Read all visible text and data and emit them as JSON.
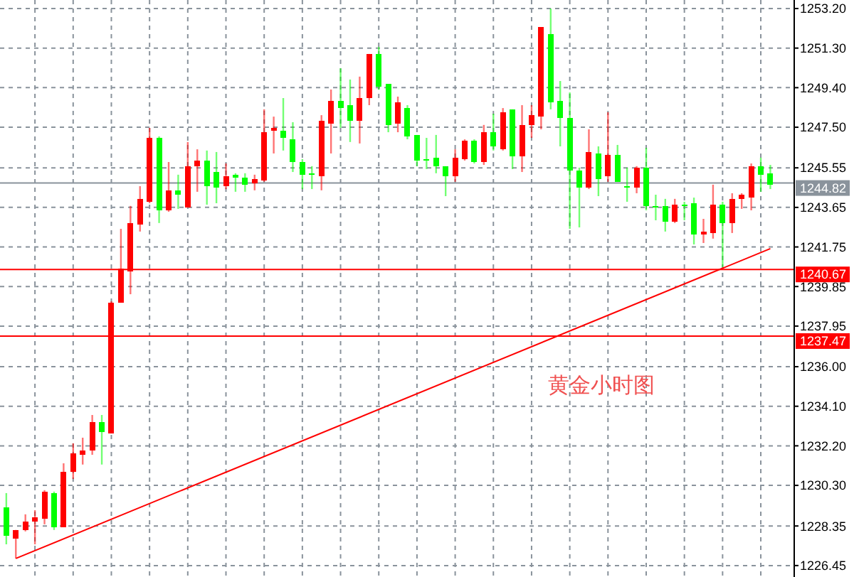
{
  "chart_data": {
    "type": "candlestick",
    "categories": [
      null,
      null,
      null,
      null,
      null,
      null,
      null,
      null,
      null,
      null,
      null,
      null,
      null,
      null,
      null,
      null,
      null,
      null,
      null,
      null,
      null,
      null,
      null,
      null,
      null,
      null,
      null,
      null,
      null,
      null,
      null,
      null,
      null,
      null,
      null,
      null,
      null,
      null,
      null,
      null,
      null,
      null,
      null,
      null,
      null,
      null,
      null,
      null,
      null,
      null,
      null,
      null,
      null,
      null,
      null,
      null,
      null,
      null,
      null,
      null,
      null,
      null,
      null,
      null,
      null,
      null,
      null,
      null,
      null,
      null,
      null,
      null,
      null,
      null,
      null,
      null,
      null,
      null,
      null,
      null,
      null
    ],
    "ohlc": [
      [
        1229.25,
        1229.93,
        1227.47,
        1227.88
      ],
      [
        1227.75,
        1228.16,
        1226.79,
        1228.16
      ],
      [
        1228.16,
        1228.91,
        1228.09,
        1228.57
      ],
      [
        1228.57,
        1229.11,
        1227.47,
        1228.77
      ],
      [
        1228.7,
        1230.07,
        1228.43,
        1230.0
      ],
      [
        1229.93,
        1230.0,
        1228.16,
        1228.29
      ],
      [
        1228.29,
        1231.36,
        1228.29,
        1230.95
      ],
      [
        1230.95,
        1232.32,
        1230.61,
        1231.84
      ],
      [
        1231.77,
        1232.59,
        1231.3,
        1231.98
      ],
      [
        1231.98,
        1233.68,
        1231.77,
        1233.34
      ],
      [
        1233.34,
        1233.68,
        1231.3,
        1232.87
      ],
      [
        1232.8,
        1239.14,
        1232.8,
        1239.07
      ],
      [
        1239.07,
        1242.62,
        1239.07,
        1240.71
      ],
      [
        1240.58,
        1243.72,
        1239.48,
        1242.9
      ],
      [
        1242.83,
        1244.67,
        1242.49,
        1244.06
      ],
      [
        1243.92,
        1247.47,
        1243.85,
        1246.99
      ],
      [
        1246.99,
        1247.06,
        1242.9,
        1243.51
      ],
      [
        1243.51,
        1245.83,
        1243.44,
        1244.47
      ],
      [
        1244.47,
        1245.22,
        1243.58,
        1244.26
      ],
      [
        1243.65,
        1246.79,
        1243.65,
        1245.63
      ],
      [
        1245.63,
        1246.44,
        1244.4,
        1245.9
      ],
      [
        1245.9,
        1246.38,
        1243.78,
        1244.67
      ],
      [
        1245.35,
        1246.31,
        1243.85,
        1244.6
      ],
      [
        1244.67,
        1245.76,
        1244.53,
        1245.15
      ],
      [
        1245.22,
        1245.29,
        1244.4,
        1245.08
      ],
      [
        1245.08,
        1245.29,
        1244.4,
        1244.74
      ],
      [
        1244.81,
        1245.22,
        1244.47,
        1245.01
      ],
      [
        1244.94,
        1248.36,
        1244.88,
        1247.26
      ],
      [
        1247.33,
        1248.01,
        1246.24,
        1247.47
      ],
      [
        1247.33,
        1248.9,
        1246.38,
        1246.99
      ],
      [
        1246.92,
        1247.74,
        1245.35,
        1245.83
      ],
      [
        1245.83,
        1245.97,
        1244.53,
        1245.22
      ],
      [
        1245.29,
        1245.63,
        1244.53,
        1245.22
      ],
      [
        1245.15,
        1248.08,
        1244.47,
        1247.81
      ],
      [
        1247.67,
        1249.31,
        1246.24,
        1248.76
      ],
      [
        1248.76,
        1250.33,
        1247.47,
        1248.42
      ],
      [
        1248.56,
        1249.79,
        1246.79,
        1247.81
      ],
      [
        1247.81,
        1249.93,
        1246.72,
        1248.9
      ],
      [
        1248.9,
        1251.02,
        1248.56,
        1251.02
      ],
      [
        1251.02,
        1251.36,
        1249.31,
        1249.45
      ],
      [
        1249.58,
        1249.58,
        1247.26,
        1247.61
      ],
      [
        1247.67,
        1248.97,
        1247.26,
        1248.7
      ],
      [
        1248.42,
        1248.56,
        1246.92,
        1247.06
      ],
      [
        1247.13,
        1247.13,
        1245.63,
        1245.9
      ],
      [
        1245.97,
        1246.99,
        1245.49,
        1245.9
      ],
      [
        1246.04,
        1247.13,
        1245.29,
        1245.63
      ],
      [
        1245.63,
        1245.63,
        1244.19,
        1245.15
      ],
      [
        1245.15,
        1246.44,
        1244.88,
        1246.04
      ],
      [
        1245.97,
        1246.92,
        1245.9,
        1246.85
      ],
      [
        1246.85,
        1246.92,
        1245.76,
        1245.83
      ],
      [
        1245.83,
        1247.61,
        1245.69,
        1247.26
      ],
      [
        1247.26,
        1248.15,
        1246.38,
        1246.58
      ],
      [
        1246.44,
        1248.42,
        1246.38,
        1248.22
      ],
      [
        1248.36,
        1248.36,
        1245.49,
        1246.1
      ],
      [
        1246.1,
        1248.56,
        1245.35,
        1247.61
      ],
      [
        1247.61,
        1248.56,
        1246.99,
        1248.08
      ],
      [
        1248.01,
        1252.31,
        1247.4,
        1252.31
      ],
      [
        1251.97,
        1253.2,
        1248.36,
        1248.7
      ],
      [
        1248.76,
        1249.72,
        1246.58,
        1247.95
      ],
      [
        1247.95,
        1249.17,
        1242.62,
        1245.42
      ],
      [
        1245.42,
        1245.56,
        1242.69,
        1244.6
      ],
      [
        1244.6,
        1247.4,
        1244.53,
        1246.31
      ],
      [
        1246.24,
        1246.58,
        1244.19,
        1245.01
      ],
      [
        1245.15,
        1248.22,
        1244.88,
        1246.17
      ],
      [
        1246.17,
        1246.65,
        1244.88,
        1244.88
      ],
      [
        1244.67,
        1245.56,
        1243.92,
        1244.6
      ],
      [
        1244.6,
        1245.63,
        1244.33,
        1245.56
      ],
      [
        1245.56,
        1246.51,
        1243.51,
        1243.72
      ],
      [
        1243.72,
        1244.26,
        1243.03,
        1243.65
      ],
      [
        1243.72,
        1244.06,
        1242.49,
        1242.96
      ],
      [
        1242.96,
        1244.06,
        1242.9,
        1243.78
      ],
      [
        1243.78,
        1243.92,
        1243.03,
        1243.72
      ],
      [
        1243.85,
        1244.12,
        1241.87,
        1242.35
      ],
      [
        1242.35,
        1243.1,
        1241.94,
        1242.49
      ],
      [
        1242.42,
        1244.74,
        1242.15,
        1243.78
      ],
      [
        1243.78,
        1243.92,
        1240.78,
        1242.9
      ],
      [
        1242.9,
        1244.33,
        1242.42,
        1244.06
      ],
      [
        1244.06,
        1244.33,
        1243.58,
        1244.26
      ],
      [
        1244.12,
        1245.76,
        1243.51,
        1245.63
      ],
      [
        1245.63,
        1246.04,
        1244.4,
        1245.22
      ],
      [
        1245.29,
        1245.69,
        1244.53,
        1244.74
      ]
    ],
    "colors": [
      "#00ff00",
      "#ff0000",
      "#ff0000",
      "#ff0000",
      "#ff0000",
      "#00ff00",
      "#ff0000",
      "#ff0000",
      "#ff0000",
      "#ff0000",
      "#00ff00",
      "#ff0000",
      "#ff0000",
      "#ff0000",
      "#ff0000",
      "#ff0000",
      "#00ff00",
      "#ff0000",
      "#00ff00",
      "#ff0000",
      "#ff0000",
      "#00ff00",
      "#00ff00",
      "#ff0000",
      "#00ff00",
      "#00ff00",
      "#ff0000",
      "#ff0000",
      "#ff0000",
      "#00ff00",
      "#00ff00",
      "#00ff00",
      "#00ff00",
      "#ff0000",
      "#ff0000",
      "#00ff00",
      "#00ff00",
      "#ff0000",
      "#ff0000",
      "#00ff00",
      "#00ff00",
      "#ff0000",
      "#00ff00",
      "#00ff00",
      "#00ff00",
      "#00ff00",
      "#00ff00",
      "#ff0000",
      "#ff0000",
      "#00ff00",
      "#ff0000",
      "#00ff00",
      "#ff0000",
      "#00ff00",
      "#ff0000",
      "#ff0000",
      "#ff0000",
      "#00ff00",
      "#00ff00",
      "#00ff00",
      "#00ff00",
      "#ff0000",
      "#00ff00",
      "#ff0000",
      "#00ff00",
      "#00ff00",
      "#ff0000",
      "#00ff00",
      "#00ff00",
      "#00ff00",
      "#ff0000",
      "#00ff00",
      "#00ff00",
      "#ff0000",
      "#ff0000",
      "#00ff00",
      "#ff0000",
      "#ff0000",
      "#ff0000",
      "#00ff00",
      "#00ff00"
    ],
    "series": [
      {
        "type": "line",
        "values": [
          null,
          1226.79,
          null,
          null,
          null,
          null,
          null,
          null,
          null,
          null,
          null,
          null,
          null,
          null,
          null,
          null,
          null,
          null,
          null,
          null,
          null,
          null,
          null,
          null,
          null,
          null,
          null,
          null,
          null,
          null,
          null,
          null,
          null,
          null,
          null,
          null,
          null,
          null,
          null,
          null,
          null,
          null,
          null,
          null,
          null,
          null,
          null,
          null,
          null,
          null,
          null,
          null,
          null,
          null,
          null,
          null,
          null,
          null,
          null,
          null,
          null,
          null,
          null,
          null,
          null,
          null,
          null,
          null,
          null,
          null,
          null,
          null,
          null,
          null,
          null,
          null,
          null,
          null,
          null,
          null,
          1241.67
        ],
        "color": "#ff0000"
      }
    ],
    "ylim": [
      1225.9,
      1253.61
    ],
    "yticks": [
      {
        "value": 1226.45,
        "label": "1226.45"
      },
      {
        "value": 1228.35,
        "label": "1228.35"
      },
      {
        "value": 1230.3,
        "label": "1230.30"
      },
      {
        "value": 1232.2,
        "label": "1232.20"
      },
      {
        "value": 1234.1,
        "label": "1234.10"
      },
      {
        "value": 1236,
        "label": "1236.00"
      },
      {
        "value": 1237.95,
        "label": "1237.95"
      },
      {
        "value": 1239.85,
        "label": "1239.85"
      },
      {
        "value": 1241.75,
        "label": "1241.75"
      },
      {
        "value": 1243.65,
        "label": "1243.65"
      },
      {
        "value": 1245.55,
        "label": "1245.55"
      },
      {
        "value": 1247.5,
        "label": "1247.50"
      },
      {
        "value": 1249.4,
        "label": "1249.40"
      },
      {
        "value": 1251.3,
        "label": "1251.30"
      },
      {
        "value": 1253.2,
        "label": "1253.20"
      }
    ],
    "tick_labels": "y",
    "grid": true,
    "ref_lines": [
      {
        "axis": "y",
        "value": 1244.82,
        "label": "1244.82",
        "color": "#8a939c"
      },
      {
        "axis": "y",
        "value": 1240.67,
        "label": "1240.67",
        "color": "#ff0000"
      },
      {
        "axis": "y",
        "value": 1237.47,
        "label": "1237.47",
        "color": "#ff0000"
      }
    ],
    "annotations": [
      "黄金小时图"
    ]
  }
}
